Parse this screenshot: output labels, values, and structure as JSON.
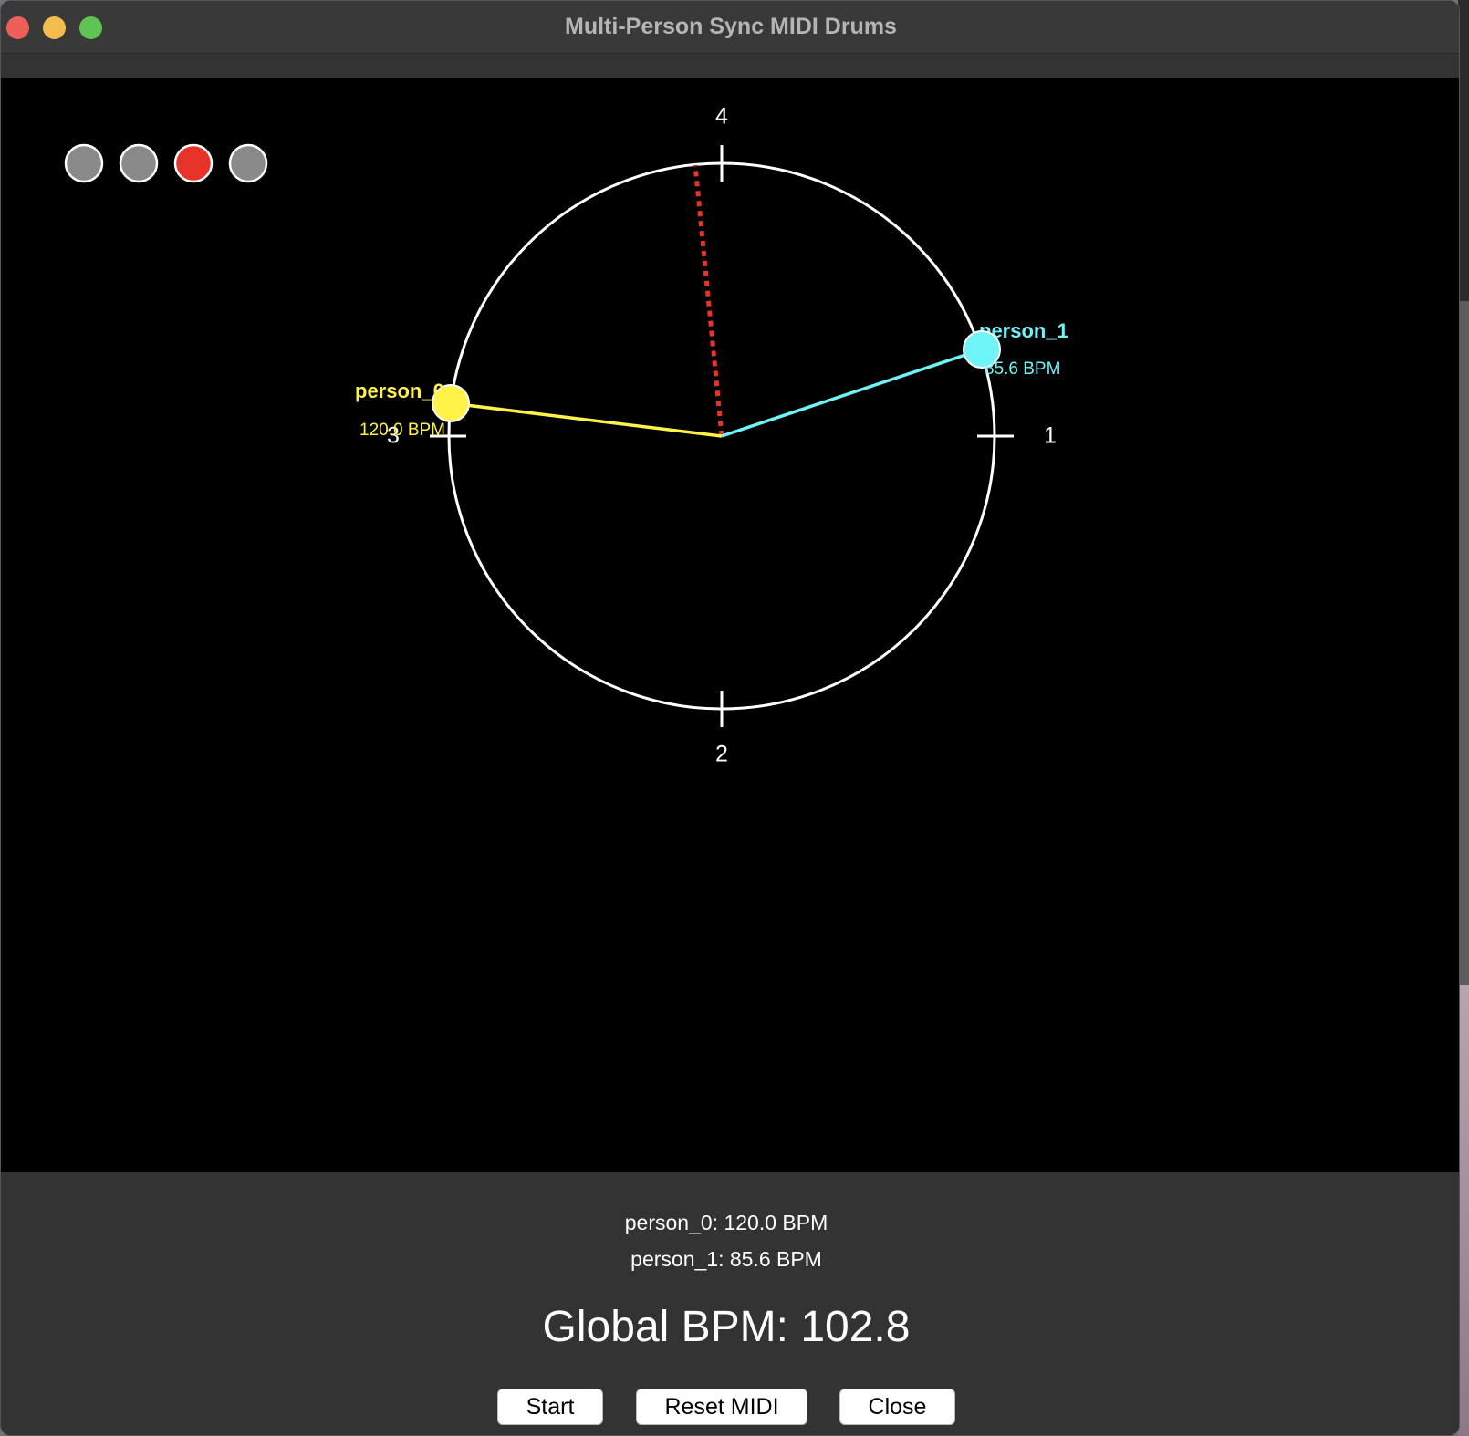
{
  "window": {
    "title": "Multi-Person Sync MIDI Drums"
  },
  "indicators": [
    {
      "name": "beat-1",
      "color": "#8a8a8a",
      "active": false
    },
    {
      "name": "beat-2",
      "color": "#8a8a8a",
      "active": false
    },
    {
      "name": "beat-3",
      "color": "#e8332a",
      "active": true
    },
    {
      "name": "beat-4",
      "color": "#8a8a8a",
      "active": false
    }
  ],
  "dial": {
    "beat_labels": {
      "top": "4",
      "right": "1",
      "bottom": "2",
      "left": "3"
    },
    "playhead_color": "#e8332a",
    "persons": [
      {
        "label": "person_0",
        "bpm_label": "120.0 BPM",
        "color": "#fff34a"
      },
      {
        "label": "person_1",
        "bpm_label": "85.6 BPM",
        "color": "#6ef3f7"
      }
    ]
  },
  "status": {
    "person_0": "person_0: 120.0 BPM",
    "person_1": "person_1: 85.6 BPM",
    "global": "Global BPM: 102.8"
  },
  "buttons": {
    "start": "Start",
    "reset_midi": "Reset MIDI",
    "close": "Close"
  }
}
